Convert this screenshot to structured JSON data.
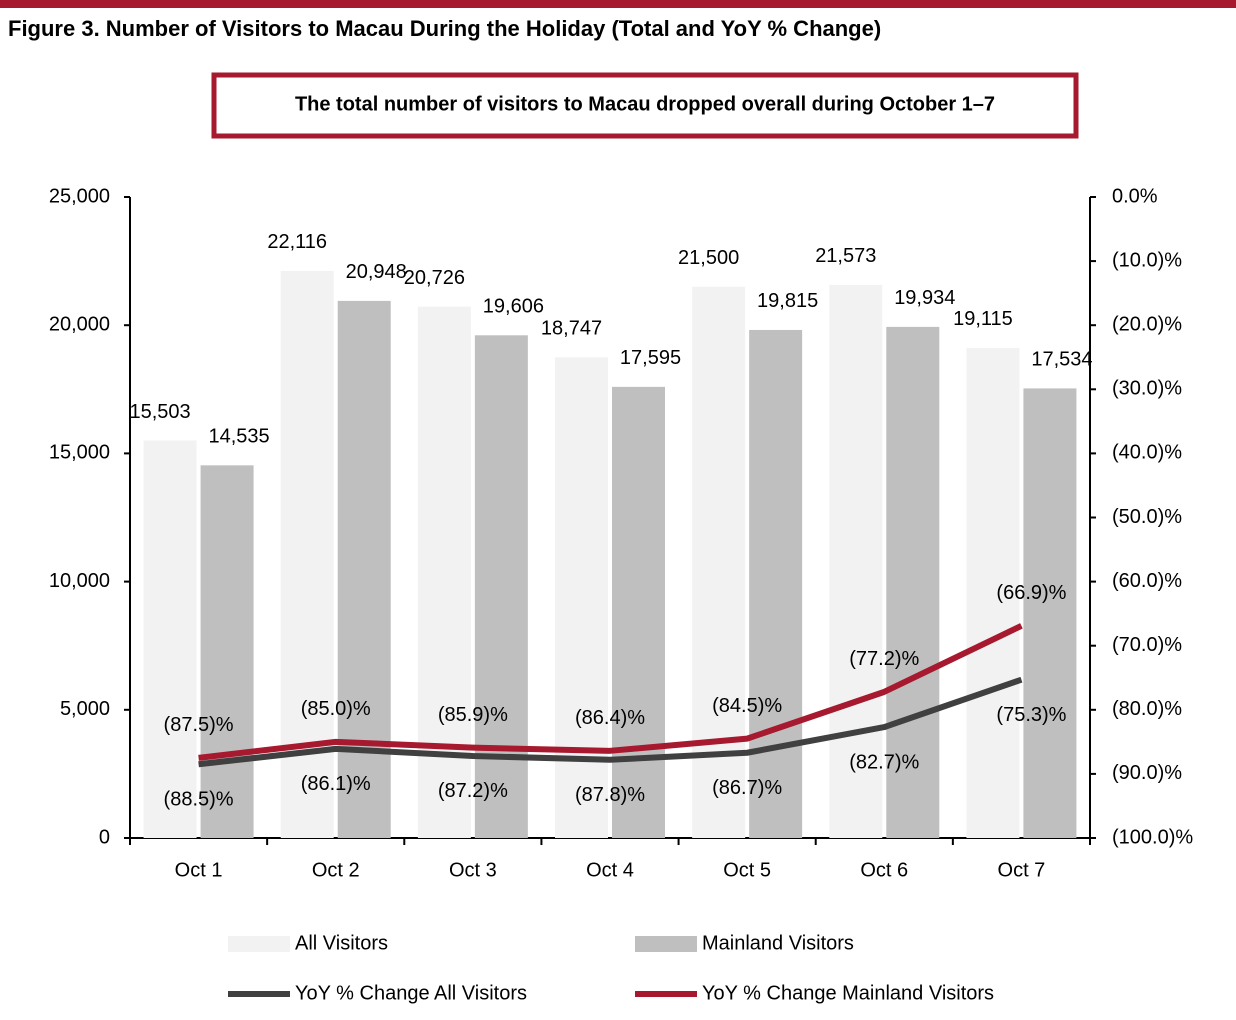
{
  "chart_data": {
    "type": "bar",
    "title": "Figure 3. Number of Visitors to Macau During the Holiday (Total and YoY % Change)",
    "annotation": "The total number of visitors to Macau dropped overall during October 1–7",
    "categories": [
      "Oct 1",
      "Oct 2",
      "Oct 3",
      "Oct 4",
      "Oct 5",
      "Oct 6",
      "Oct 7"
    ],
    "series": [
      {
        "name": "All Visitors",
        "type": "bar",
        "color": "#f2f2f2",
        "values": [
          15503,
          22116,
          20726,
          18747,
          21500,
          21573,
          19115
        ],
        "value_labels": [
          "15,503",
          "22,116",
          "20,726",
          "18,747",
          "21,500",
          "21,573",
          "19,115"
        ]
      },
      {
        "name": "Mainland Visitors",
        "type": "bar",
        "color": "#bfbfbf",
        "values": [
          14535,
          20948,
          19606,
          17595,
          19815,
          19934,
          17534
        ],
        "value_labels": [
          "14,535",
          "20,948",
          "19,606",
          "17,595",
          "19,815",
          "19,934",
          "17,534"
        ]
      },
      {
        "name": "YoY % Change All Visitors",
        "type": "line",
        "axis": "y2",
        "color": "#404040",
        "values": [
          -88.5,
          -86.1,
          -87.2,
          -87.8,
          -86.7,
          -82.7,
          -75.3
        ],
        "value_labels": [
          "(88.5)%",
          "(86.1)%",
          "(87.2)%",
          "(87.8)%",
          "(86.7)%",
          "(82.7)%",
          "(75.3)%"
        ]
      },
      {
        "name": "YoY % Change Mainland Visitors",
        "type": "line",
        "axis": "y2",
        "color": "#a6192e",
        "values": [
          -87.5,
          -85.0,
          -85.9,
          -86.4,
          -84.5,
          -77.2,
          -66.9
        ],
        "value_labels": [
          "(87.5)%",
          "(85.0)%",
          "(85.9)%",
          "(86.4)%",
          "(84.5)%",
          "(77.2)%",
          "(66.9)%"
        ]
      }
    ],
    "ylim": [
      0,
      25000
    ],
    "yticks": [
      0,
      {
        "value": 5000,
        "label": "5,000"
      },
      {
        "value": 10000,
        "label": "10,000"
      },
      {
        "value": 15000,
        "label": "15,000"
      },
      {
        "value": 20000,
        "label": "20,000"
      },
      {
        "value": 25000,
        "label": "25,000"
      }
    ],
    "y2lim": [
      -100,
      0
    ],
    "y2ticks": [
      {
        "value": 0,
        "label": "0.0%"
      },
      {
        "value": -10,
        "label": "(10.0)%"
      },
      {
        "value": -20,
        "label": "(20.0)%"
      },
      {
        "value": -30,
        "label": "(30.0)%"
      },
      {
        "value": -40,
        "label": "(40.0)%"
      },
      {
        "value": -50,
        "label": "(50.0)%"
      },
      {
        "value": -60,
        "label": "(60.0)%"
      },
      {
        "value": -70,
        "label": "(70.0)%"
      },
      {
        "value": -80,
        "label": "(80.0)%"
      },
      {
        "value": -90,
        "label": "(90.0)%"
      },
      {
        "value": -100,
        "label": "(100.0)%"
      }
    ],
    "grid": false,
    "legend": "bottom",
    "accent_color": "#a6192e"
  }
}
